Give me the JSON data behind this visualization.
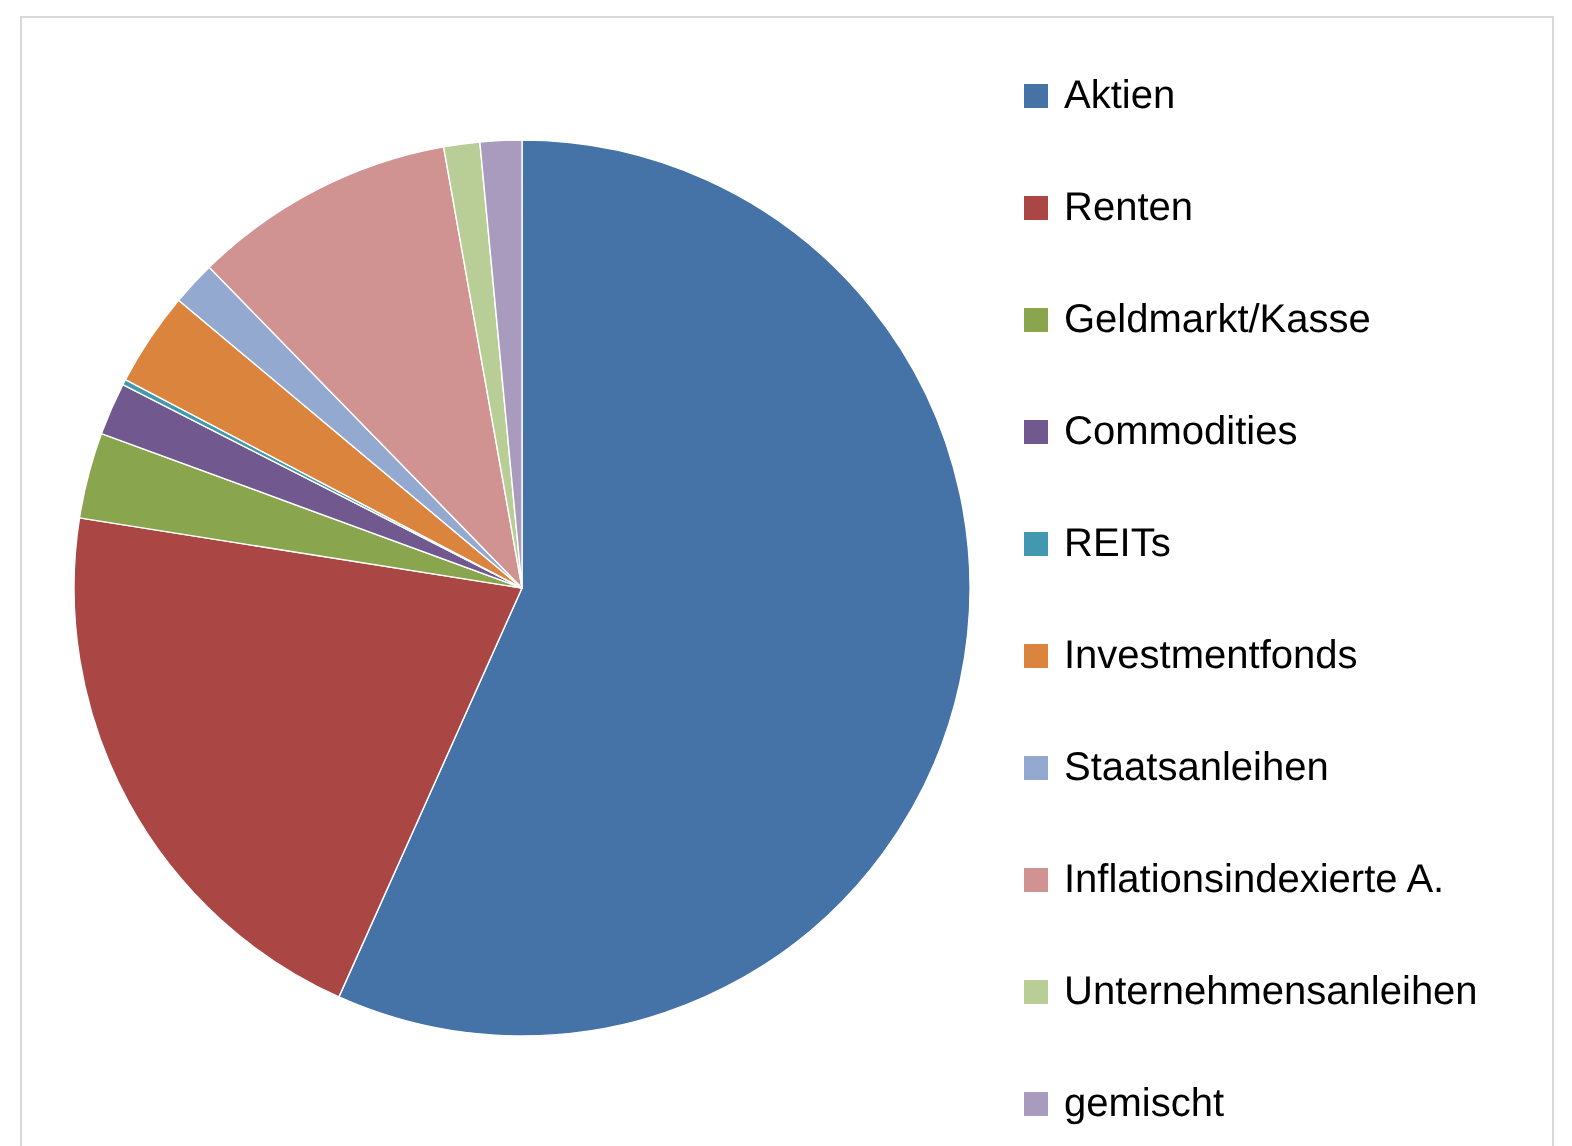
{
  "chart_data": {
    "type": "pie",
    "categories": [
      "Aktien",
      "Renten",
      "Geldmarkt/Kasse",
      "Commodities",
      "REITs",
      "Investmentfonds",
      "Staatsanleihen",
      "Inflationsindexierte A.",
      "Unternehmensanleihen",
      "gemischt"
    ],
    "values": [
      56.7,
      20.8,
      3.1,
      1.9,
      0.2,
      3.4,
      1.6,
      9.5,
      1.3,
      1.5
    ],
    "colors": [
      "#4572a7",
      "#aa4643",
      "#89a54e",
      "#71588f",
      "#4198af",
      "#db843d",
      "#93a9cf",
      "#d19392",
      "#b9cd96",
      "#a99bbd"
    ],
    "legend": "right"
  }
}
